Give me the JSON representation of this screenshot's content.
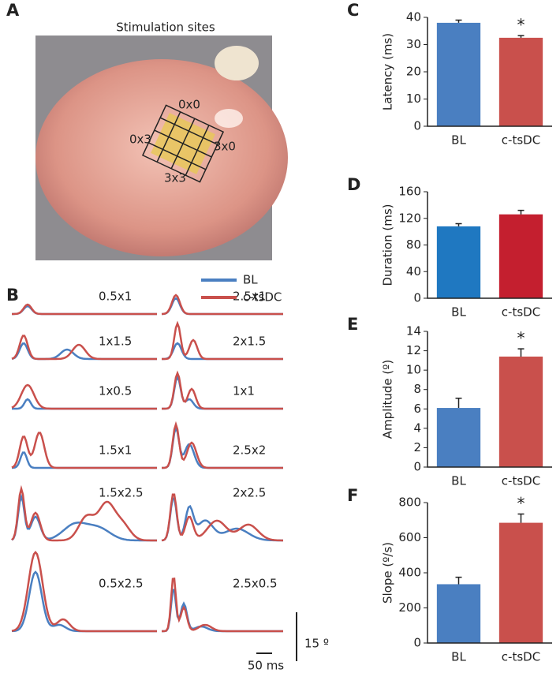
{
  "panel_a": {
    "label": "A",
    "title": "Stimulation sites",
    "sites": [
      "0x0",
      "0x3",
      "3x0",
      "3x3"
    ]
  },
  "panel_b": {
    "label": "B",
    "legend": [
      {
        "name": "BL",
        "color": "#4a7fc1"
      },
      {
        "name": "c-tsDC",
        "color": "#c9504c"
      }
    ],
    "trace_labels": [
      "0.5x1",
      "2.5x1",
      "1x1.5",
      "2x1.5",
      "1x0.5",
      "1x1",
      "1.5x1",
      "2.5x2",
      "1.5x2.5",
      "2x2.5",
      "0.5x2.5",
      "2.5x0.5"
    ],
    "scale_y": "15 º",
    "scale_x": "50 ms"
  },
  "chart_data": [
    {
      "type": "bar",
      "panel": "C",
      "ylabel": "Latency (ms)",
      "categories": [
        "BL",
        "c-tsDC"
      ],
      "values": [
        38,
        32.5
      ],
      "errors": [
        1,
        0.8
      ],
      "colors": [
        "#4a7fc1",
        "#c9504c"
      ],
      "ylim": [
        0,
        40
      ],
      "yticks": [
        0,
        10,
        20,
        30,
        40
      ],
      "annotation": "*"
    },
    {
      "type": "bar",
      "panel": "D",
      "ylabel": "Duration (ms)",
      "categories": [
        "BL",
        "c-tsDC"
      ],
      "values": [
        108,
        126
      ],
      "errors": [
        4,
        6
      ],
      "colors": [
        "#1f78c1",
        "#c41f2f"
      ],
      "ylim": [
        0,
        160
      ],
      "yticks": [
        0,
        40,
        80,
        120,
        160
      ]
    },
    {
      "type": "bar",
      "panel": "E",
      "ylabel": "Amplitude (º)",
      "categories": [
        "BL",
        "c-tsDC"
      ],
      "values": [
        6.1,
        11.4
      ],
      "errors": [
        1,
        0.8
      ],
      "colors": [
        "#4a7fc1",
        "#c9504c"
      ],
      "ylim": [
        0,
        14
      ],
      "yticks": [
        0,
        2,
        4,
        6,
        8,
        10,
        12,
        14
      ],
      "annotation": "*"
    },
    {
      "type": "bar",
      "panel": "F",
      "ylabel": "Slope (º/s)",
      "categories": [
        "BL",
        "c-tsDC"
      ],
      "values": [
        335,
        685
      ],
      "errors": [
        40,
        50
      ],
      "colors": [
        "#4a7fc1",
        "#c9504c"
      ],
      "ylim": [
        0,
        800
      ],
      "yticks": [
        0,
        200,
        400,
        600,
        800
      ],
      "annotation": "*"
    }
  ]
}
